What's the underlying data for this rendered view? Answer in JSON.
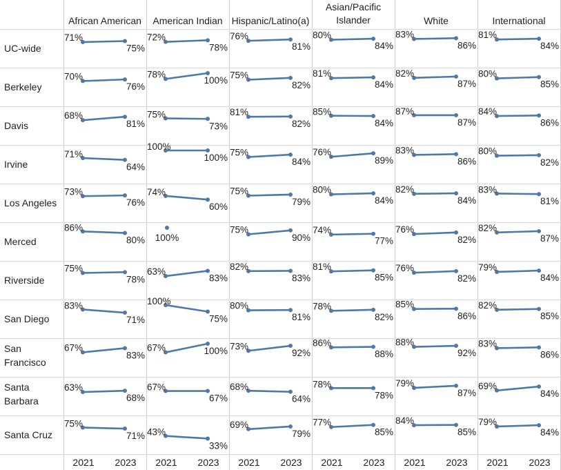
{
  "chart_data": {
    "type": "line",
    "subtype": "slope-small-multiples",
    "title": "",
    "x": [
      "2021",
      "2023"
    ],
    "columns": [
      "African American",
      "American Indian",
      "Hispanic/Latino(a)",
      "Asian/Pacific Islander",
      "White",
      "International"
    ],
    "column_header_lines": [
      [
        "African American"
      ],
      [
        "American Indian"
      ],
      [
        "Hispanic/Latino(a)"
      ],
      [
        "Asian/Pacific",
        "Islander"
      ],
      [
        "White"
      ],
      [
        "International"
      ]
    ],
    "rows": [
      "UC-wide",
      "Berkeley",
      "Davis",
      "Irvine",
      "Los Angeles",
      "Merced",
      "Riverside",
      "San Diego",
      "San Francisco",
      "Santa Barbara",
      "Santa Cruz"
    ],
    "row_header_lines": [
      [
        "UC-wide"
      ],
      [
        "Berkeley"
      ],
      [
        "Davis"
      ],
      [
        "Irvine"
      ],
      [
        "Los Angeles"
      ],
      [
        "Merced"
      ],
      [
        "Riverside"
      ],
      [
        "San Diego"
      ],
      [
        "San",
        "Francisco"
      ],
      [
        "Santa",
        "Barbara"
      ],
      [
        "Santa Cruz"
      ]
    ],
    "unit": "%",
    "values": [
      [
        [
          71,
          75
        ],
        [
          72,
          78
        ],
        [
          76,
          81
        ],
        [
          80,
          84
        ],
        [
          83,
          86
        ],
        [
          81,
          84
        ]
      ],
      [
        [
          70,
          76
        ],
        [
          78,
          100
        ],
        [
          75,
          82
        ],
        [
          81,
          84
        ],
        [
          82,
          87
        ],
        [
          80,
          85
        ]
      ],
      [
        [
          68,
          81
        ],
        [
          75,
          73
        ],
        [
          81,
          82
        ],
        [
          85,
          84
        ],
        [
          87,
          87
        ],
        [
          84,
          86
        ]
      ],
      [
        [
          71,
          64
        ],
        [
          100,
          100
        ],
        [
          75,
          84
        ],
        [
          76,
          89
        ],
        [
          83,
          86
        ],
        [
          80,
          82
        ]
      ],
      [
        [
          73,
          76
        ],
        [
          74,
          60
        ],
        [
          75,
          79
        ],
        [
          80,
          84
        ],
        [
          82,
          84
        ],
        [
          83,
          81
        ]
      ],
      [
        [
          86,
          80
        ],
        [
          null,
          100
        ],
        [
          75,
          90
        ],
        [
          74,
          77
        ],
        [
          76,
          82
        ],
        [
          82,
          87
        ]
      ],
      [
        [
          75,
          78
        ],
        [
          63,
          83
        ],
        [
          82,
          83
        ],
        [
          81,
          85
        ],
        [
          76,
          82
        ],
        [
          79,
          84
        ]
      ],
      [
        [
          83,
          71
        ],
        [
          100,
          75
        ],
        [
          80,
          81
        ],
        [
          78,
          82
        ],
        [
          85,
          86
        ],
        [
          82,
          85
        ]
      ],
      [
        [
          67,
          83
        ],
        [
          67,
          100
        ],
        [
          73,
          92
        ],
        [
          86,
          88
        ],
        [
          88,
          92
        ],
        [
          83,
          86
        ]
      ],
      [
        [
          63,
          68
        ],
        [
          67,
          67
        ],
        [
          68,
          64
        ],
        [
          78,
          78
        ],
        [
          79,
          87
        ],
        [
          69,
          84
        ]
      ],
      [
        [
          75,
          71
        ],
        [
          43,
          33
        ],
        [
          69,
          79
        ],
        [
          77,
          85
        ],
        [
          84,
          85
        ],
        [
          79,
          84
        ]
      ]
    ],
    "series_color": "#4e79a7",
    "grid": true,
    "legend": "none"
  }
}
